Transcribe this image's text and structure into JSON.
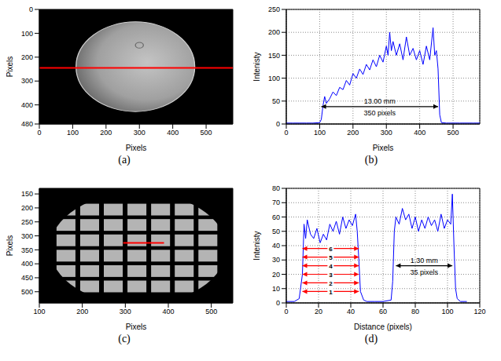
{
  "chart_data": [
    {
      "type": "image",
      "caption": "(a)",
      "xlabel": "Pixels",
      "ylabel": "Pixels",
      "xlim": [
        0,
        580
      ],
      "ylim": [
        0,
        480
      ],
      "xticks": [
        0,
        100,
        200,
        300,
        400,
        500
      ],
      "yticks": [
        0,
        100,
        200,
        300,
        400,
        480
      ],
      "grid": false,
      "profile_line": {
        "x": [
          0,
          580
        ],
        "y": [
          245,
          245
        ],
        "color": "#ff0000"
      }
    },
    {
      "type": "line",
      "caption": "(b)",
      "xlabel": "Pixels",
      "ylabel": "Intenisty",
      "xlim": [
        0,
        580
      ],
      "ylim": [
        0,
        250
      ],
      "xticks": [
        0,
        100,
        200,
        300,
        400,
        500
      ],
      "yticks": [
        0,
        50,
        100,
        150,
        200,
        250
      ],
      "grid": true,
      "color": "#0000ff",
      "x": [
        0,
        20,
        40,
        60,
        80,
        100,
        105,
        110,
        115,
        120,
        130,
        140,
        150,
        160,
        170,
        180,
        190,
        200,
        210,
        220,
        230,
        240,
        250,
        260,
        270,
        280,
        290,
        300,
        305,
        310,
        315,
        320,
        330,
        340,
        350,
        360,
        370,
        380,
        390,
        400,
        410,
        420,
        430,
        440,
        445,
        450,
        455,
        460,
        465,
        480,
        500,
        520,
        540,
        560,
        580
      ],
      "values": [
        2,
        2,
        2,
        2,
        2,
        3,
        10,
        40,
        60,
        45,
        55,
        70,
        62,
        80,
        75,
        95,
        85,
        110,
        100,
        120,
        108,
        130,
        118,
        140,
        125,
        150,
        135,
        170,
        150,
        200,
        160,
        180,
        150,
        175,
        140,
        190,
        150,
        165,
        140,
        160,
        130,
        170,
        140,
        210,
        150,
        160,
        120,
        20,
        3,
        2,
        2,
        2,
        2,
        2,
        2
      ],
      "annotations": [
        {
          "x": [
            105,
            455
          ],
          "y": 38,
          "text_above": "13.00 mm",
          "text_below": "350 pixels",
          "color": "#000000"
        }
      ]
    },
    {
      "type": "image",
      "caption": "(c)",
      "xlabel": "Pixels",
      "ylabel": "Pixels",
      "xlim": [
        100,
        550
      ],
      "ylim": [
        130,
        540
      ],
      "xticks": [
        100,
        200,
        300,
        400,
        500
      ],
      "yticks": [
        150,
        200,
        250,
        300,
        350,
        400,
        450,
        500
      ],
      "grid": false,
      "profile_line": {
        "x": [
          295,
          390
        ],
        "y": [
          325,
          325
        ],
        "color": "#ff0000"
      }
    },
    {
      "type": "line",
      "caption": "(d)",
      "xlabel": "Distance (pixels)",
      "ylabel": "Intenisty",
      "xlim": [
        0,
        120
      ],
      "ylim": [
        0,
        80
      ],
      "xticks": [
        0,
        20,
        40,
        60,
        80,
        100,
        120
      ],
      "yticks": [
        0,
        10,
        20,
        30,
        40,
        50,
        60,
        70,
        80
      ],
      "grid": true,
      "color": "#0000ff",
      "x": [
        0,
        5,
        8,
        10,
        11,
        12,
        13,
        15,
        17,
        19,
        21,
        23,
        25,
        27,
        29,
        31,
        33,
        35,
        37,
        39,
        41,
        43,
        44,
        45,
        46,
        48,
        50,
        55,
        60,
        65,
        66,
        67,
        68,
        70,
        72,
        74,
        76,
        78,
        80,
        82,
        84,
        86,
        88,
        90,
        92,
        94,
        96,
        98,
        100,
        102,
        103,
        104,
        105,
        106,
        108,
        112
      ],
      "values": [
        1,
        1,
        3,
        20,
        55,
        45,
        58,
        48,
        45,
        52,
        42,
        48,
        44,
        55,
        50,
        57,
        48,
        60,
        52,
        58,
        54,
        62,
        50,
        30,
        8,
        2,
        1,
        1,
        1,
        2,
        15,
        50,
        60,
        55,
        66,
        58,
        62,
        52,
        60,
        50,
        58,
        52,
        60,
        54,
        58,
        50,
        62,
        52,
        58,
        55,
        76,
        40,
        10,
        3,
        1,
        1
      ],
      "annotations": [
        {
          "x": [
            10,
            45
          ],
          "y": 8,
          "text_middle": "1",
          "color": "#ff0000"
        },
        {
          "x": [
            10,
            45
          ],
          "y": 14,
          "text_middle": "2",
          "color": "#ff0000"
        },
        {
          "x": [
            10,
            45
          ],
          "y": 20,
          "text_middle": "3",
          "color": "#ff0000"
        },
        {
          "x": [
            10,
            45
          ],
          "y": 26,
          "text_middle": "4",
          "color": "#ff0000"
        },
        {
          "x": [
            10,
            45
          ],
          "y": 32,
          "text_middle": "5",
          "color": "#ff0000"
        },
        {
          "x": [
            10,
            45
          ],
          "y": 38,
          "text_middle": "6",
          "color": "#ff0000"
        },
        {
          "x": [
            68,
            103
          ],
          "y": 26,
          "text_above": "1.30 mm",
          "text_below": "35 pixels",
          "color": "#000000"
        }
      ]
    }
  ]
}
